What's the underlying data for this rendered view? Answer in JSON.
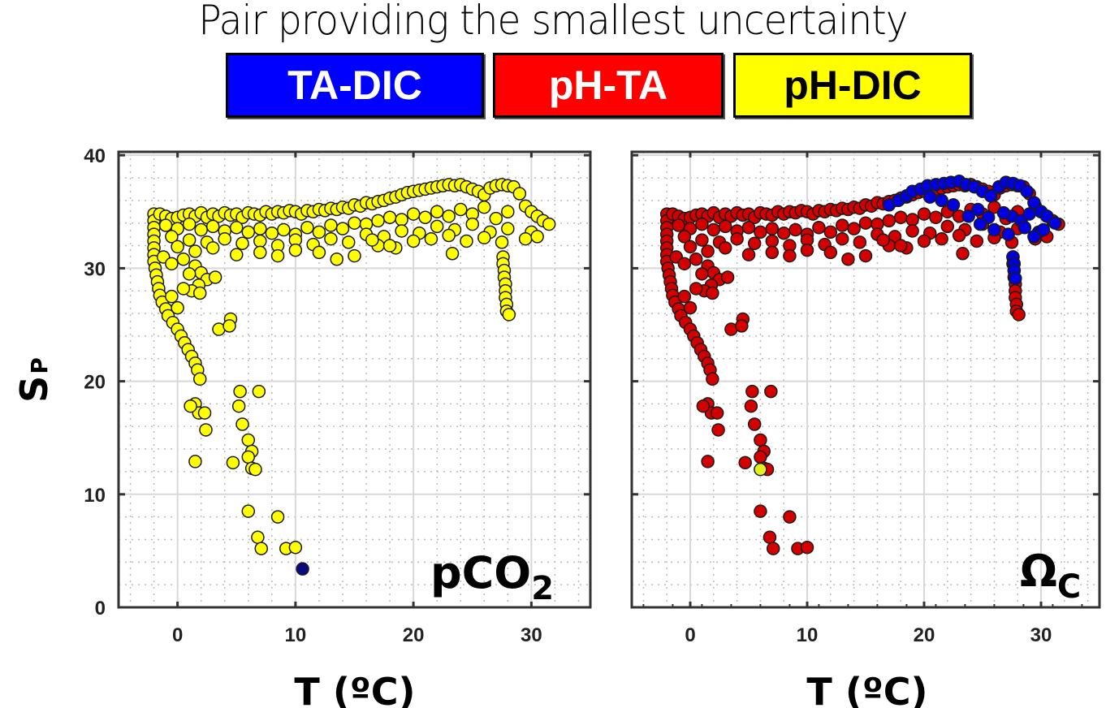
{
  "header": {
    "title": "Pair providing the smallest uncertainty"
  },
  "legend": [
    {
      "label": "TA-DIC",
      "color": "#0000ff",
      "text_color": "#ffffff"
    },
    {
      "label": "pH-TA",
      "color": "#ff0000",
      "text_color": "#ffffff"
    },
    {
      "label": "pH-DIC",
      "color": "#ffff00",
      "text_color": "#000000"
    }
  ],
  "chart_data": [
    {
      "type": "scatter",
      "panel_label": "pCO",
      "panel_label_sub": "2",
      "xlabel": "T (ºC)",
      "ylabel": "S",
      "ylabel_sub": "P",
      "xlim": [
        -5,
        35
      ],
      "ylim": [
        0,
        40.3
      ],
      "xticks": [
        0,
        10,
        20,
        30
      ],
      "yticks": [
        0,
        10,
        20,
        30,
        40
      ],
      "grid": true,
      "series": [
        {
          "name": "pH-DIC",
          "color": "#ffff00",
          "region": "main"
        },
        {
          "name": "TA-DIC",
          "color": "#0a0a80",
          "points": [
            [
              10.6,
              3.4
            ]
          ]
        }
      ]
    },
    {
      "type": "scatter",
      "panel_label": "Ω",
      "panel_label_sub": "C",
      "xlabel": "T (ºC)",
      "ylabel": "",
      "xlim": [
        -5,
        35
      ],
      "ylim": [
        0,
        40.3
      ],
      "xticks": [
        0,
        10,
        20,
        30
      ],
      "yticks": [],
      "grid": true,
      "series": [
        {
          "name": "pH-TA",
          "color": "#d40000",
          "region": "main"
        },
        {
          "name": "TA-DIC",
          "color": "#0000e0",
          "region": "warm"
        },
        {
          "name": "pH-DIC",
          "color": "#e4f020",
          "points": [
            [
              6.0,
              12.2
            ]
          ]
        }
      ]
    }
  ],
  "scatter_points": {
    "main": [
      [
        -2,
        34.8
      ],
      [
        -2,
        34.2
      ],
      [
        -2,
        33.6
      ],
      [
        -2,
        33
      ],
      [
        -2,
        32.4
      ],
      [
        -2,
        31.8
      ],
      [
        -2,
        31.2
      ],
      [
        -2,
        30.6
      ],
      [
        -1.9,
        30
      ],
      [
        -1.8,
        29.4
      ],
      [
        -1.7,
        28.8
      ],
      [
        -1.6,
        28.2
      ],
      [
        -1.5,
        27.6
      ],
      [
        -1.3,
        27
      ],
      [
        -1,
        26.4
      ],
      [
        -0.8,
        25.8
      ],
      [
        -0.4,
        25.2
      ],
      [
        0,
        24.6
      ],
      [
        0.3,
        24
      ],
      [
        0.6,
        23.4
      ],
      [
        0.9,
        22.8
      ],
      [
        1.2,
        22.2
      ],
      [
        1.5,
        21.6
      ],
      [
        1.7,
        21
      ],
      [
        1.9,
        20.2
      ],
      [
        1.5,
        18
      ],
      [
        1.8,
        17.2
      ],
      [
        2.3,
        17.2
      ],
      [
        1.1,
        17.8
      ],
      [
        2.4,
        15.7
      ],
      [
        1.5,
        12.9
      ],
      [
        4.7,
        12.8
      ],
      [
        5.2,
        17.8
      ],
      [
        5.3,
        19.1
      ],
      [
        6.9,
        19.1
      ],
      [
        5.5,
        16.2
      ],
      [
        6,
        14.8
      ],
      [
        6.3,
        13.8
      ],
      [
        6,
        13.3
      ],
      [
        6.3,
        12.3
      ],
      [
        6.6,
        12.2
      ],
      [
        6,
        8.5
      ],
      [
        8.5,
        8
      ],
      [
        6.8,
        6.2
      ],
      [
        7.1,
        5.2
      ],
      [
        9.2,
        5.2
      ],
      [
        10,
        5.3
      ],
      [
        -1.5,
        34.8
      ],
      [
        -1,
        34.6
      ],
      [
        -0.5,
        34.4
      ],
      [
        0,
        34.5
      ],
      [
        0.5,
        34.7
      ],
      [
        1,
        34.8
      ],
      [
        1.5,
        34.6
      ],
      [
        2,
        34.9
      ],
      [
        2.5,
        34.5
      ],
      [
        3,
        34.8
      ],
      [
        3.5,
        34.6
      ],
      [
        4,
        34.9
      ],
      [
        4.5,
        34.7
      ],
      [
        5,
        34.8
      ],
      [
        5.5,
        34.5
      ],
      [
        6,
        34.9
      ],
      [
        6.5,
        34.8
      ],
      [
        7,
        34.7
      ],
      [
        7.5,
        35
      ],
      [
        8,
        34.8
      ],
      [
        8.5,
        35
      ],
      [
        9,
        34.9
      ],
      [
        9.5,
        35.1
      ],
      [
        10,
        35
      ],
      [
        10.5,
        34.8
      ],
      [
        11,
        35.1
      ],
      [
        11.5,
        35
      ],
      [
        12,
        35.2
      ],
      [
        12.5,
        35.1
      ],
      [
        13,
        35.3
      ],
      [
        13.5,
        35.2
      ],
      [
        14,
        35.4
      ],
      [
        14.5,
        35.3
      ],
      [
        15,
        35.6
      ],
      [
        15.5,
        35.5
      ],
      [
        16,
        35.8
      ],
      [
        16.5,
        35.7
      ],
      [
        17,
        35.9
      ],
      [
        17.5,
        36
      ],
      [
        18,
        36.2
      ],
      [
        18.5,
        36.3
      ],
      [
        19,
        36.5
      ],
      [
        19.5,
        36.7
      ],
      [
        20,
        36.8
      ],
      [
        20.5,
        36.9
      ],
      [
        21,
        37
      ],
      [
        21.5,
        37.1
      ],
      [
        22,
        37.2
      ],
      [
        22.5,
        37.3
      ],
      [
        23,
        37.4
      ],
      [
        23.5,
        37.3
      ],
      [
        24,
        37.4
      ],
      [
        24.5,
        37.2
      ],
      [
        25,
        37
      ],
      [
        25.5,
        36.8
      ],
      [
        26,
        36.5
      ],
      [
        26.5,
        37.1
      ],
      [
        27,
        37.3
      ],
      [
        27.5,
        37.4
      ],
      [
        28,
        37.3
      ],
      [
        28.5,
        37.2
      ],
      [
        29,
        36.6
      ],
      [
        29.5,
        35.5
      ],
      [
        30,
        35
      ],
      [
        30.5,
        34.6
      ],
      [
        31,
        34.2
      ],
      [
        31.5,
        33.9
      ],
      [
        30,
        33.2
      ],
      [
        29.5,
        32.6
      ],
      [
        30.5,
        32.8
      ],
      [
        -1,
        33.8
      ],
      [
        0,
        33.5
      ],
      [
        1,
        33.9
      ],
      [
        2,
        33.4
      ],
      [
        3,
        33.7
      ],
      [
        4,
        33.3
      ],
      [
        5,
        33.6
      ],
      [
        6,
        33.2
      ],
      [
        7,
        33.5
      ],
      [
        8,
        33.1
      ],
      [
        9,
        33.4
      ],
      [
        10,
        33
      ],
      [
        11,
        33.6
      ],
      [
        12,
        33.2
      ],
      [
        13,
        33.8
      ],
      [
        14,
        33.5
      ],
      [
        15,
        34
      ],
      [
        16,
        33.9
      ],
      [
        17,
        34.2
      ],
      [
        18,
        34.5
      ],
      [
        19,
        34.3
      ],
      [
        20,
        34.8
      ],
      [
        21,
        34.5
      ],
      [
        22,
        35
      ],
      [
        23,
        34.6
      ],
      [
        24,
        35.2
      ],
      [
        25,
        34.8
      ],
      [
        26,
        35.4
      ],
      [
        27,
        34.4
      ],
      [
        28,
        35
      ],
      [
        -0.5,
        32.8
      ],
      [
        1,
        32.5
      ],
      [
        2.5,
        32.3
      ],
      [
        4,
        32.6
      ],
      [
        5.5,
        32.2
      ],
      [
        7,
        32.4
      ],
      [
        8.5,
        32
      ],
      [
        10,
        32.5
      ],
      [
        11.5,
        32.1
      ],
      [
        13,
        32.6
      ],
      [
        14.5,
        32.3
      ],
      [
        16,
        33
      ],
      [
        17.5,
        32.8
      ],
      [
        19,
        33.3
      ],
      [
        20.5,
        33.1
      ],
      [
        22,
        33.7
      ],
      [
        23.5,
        33.4
      ],
      [
        25,
        33.9
      ],
      [
        26.5,
        33.2
      ],
      [
        28,
        33.5
      ],
      [
        0,
        31.9
      ],
      [
        1.5,
        31.5
      ],
      [
        3,
        31.8
      ],
      [
        5,
        31.2
      ],
      [
        7,
        31.4
      ],
      [
        8.5,
        31.1
      ],
      [
        10,
        31.6
      ],
      [
        12,
        31.4
      ],
      [
        13.5,
        30.8
      ],
      [
        15,
        31.1
      ],
      [
        17,
        32
      ],
      [
        18.5,
        31.8
      ],
      [
        20,
        32.4
      ],
      [
        21.5,
        32.6
      ],
      [
        23,
        32.9
      ],
      [
        24.5,
        32.4
      ],
      [
        26,
        32.7
      ],
      [
        27.5,
        32.3
      ],
      [
        -1.2,
        31
      ],
      [
        -0.5,
        30.4
      ],
      [
        0.5,
        30.8
      ],
      [
        1.5,
        30.2
      ],
      [
        2,
        29.6
      ],
      [
        2.5,
        29
      ],
      [
        3.2,
        29.2
      ],
      [
        1,
        29.5
      ],
      [
        1.8,
        28.5
      ],
      [
        1.2,
        28
      ],
      [
        1.9,
        27.8
      ],
      [
        0.5,
        28.2
      ],
      [
        -0.5,
        27.5
      ],
      [
        0,
        26.5
      ],
      [
        3.5,
        24.6
      ],
      [
        4.5,
        25.5
      ],
      [
        4.4,
        24.9
      ],
      [
        23.3,
        31.3
      ],
      [
        18,
        32
      ],
      [
        16.5,
        32.5
      ],
      [
        27.6,
        31
      ],
      [
        27.6,
        30.4
      ],
      [
        27.7,
        29.8
      ],
      [
        27.7,
        29.2
      ],
      [
        27.8,
        28.6
      ],
      [
        27.8,
        28
      ],
      [
        27.8,
        27.4
      ],
      [
        27.9,
        26.8
      ],
      [
        27.9,
        26.2
      ],
      [
        28.1,
        25.9
      ]
    ],
    "warm": [
      [
        17,
        35.6
      ],
      [
        17.8,
        36
      ],
      [
        18.5,
        36.4
      ],
      [
        19,
        36.8
      ],
      [
        19.7,
        37
      ],
      [
        20.3,
        37.3
      ],
      [
        21,
        37.4
      ],
      [
        21.7,
        37.5
      ],
      [
        22.3,
        37.6
      ],
      [
        23,
        37.7
      ],
      [
        23.6,
        37.4
      ],
      [
        24.3,
        37.2
      ],
      [
        25,
        36.8
      ],
      [
        25.7,
        36.4
      ],
      [
        26.4,
        37.2
      ],
      [
        27,
        37.6
      ],
      [
        27.6,
        37.5
      ],
      [
        28.2,
        37.3
      ],
      [
        28.8,
        36.8
      ],
      [
        29.4,
        35.8
      ],
      [
        30,
        35
      ],
      [
        30.5,
        34.6
      ],
      [
        31.2,
        34
      ],
      [
        29.8,
        33.2
      ],
      [
        29.4,
        32.8
      ],
      [
        30.2,
        33.4
      ],
      [
        27.5,
        34.6
      ],
      [
        28.3,
        34.2
      ],
      [
        26.8,
        34.9
      ],
      [
        25.5,
        34.5
      ],
      [
        24.6,
        35.2
      ],
      [
        23.8,
        34.6
      ],
      [
        22.5,
        35.6
      ],
      [
        21.5,
        36
      ],
      [
        20.5,
        36.3
      ],
      [
        24.8,
        33.9
      ],
      [
        26,
        33.4
      ],
      [
        27.2,
        33
      ],
      [
        28.6,
        33.6
      ],
      [
        29,
        34.8
      ],
      [
        27.6,
        31
      ],
      [
        27.7,
        30.4
      ],
      [
        27.7,
        29.8
      ],
      [
        27.8,
        29.1
      ]
    ]
  }
}
